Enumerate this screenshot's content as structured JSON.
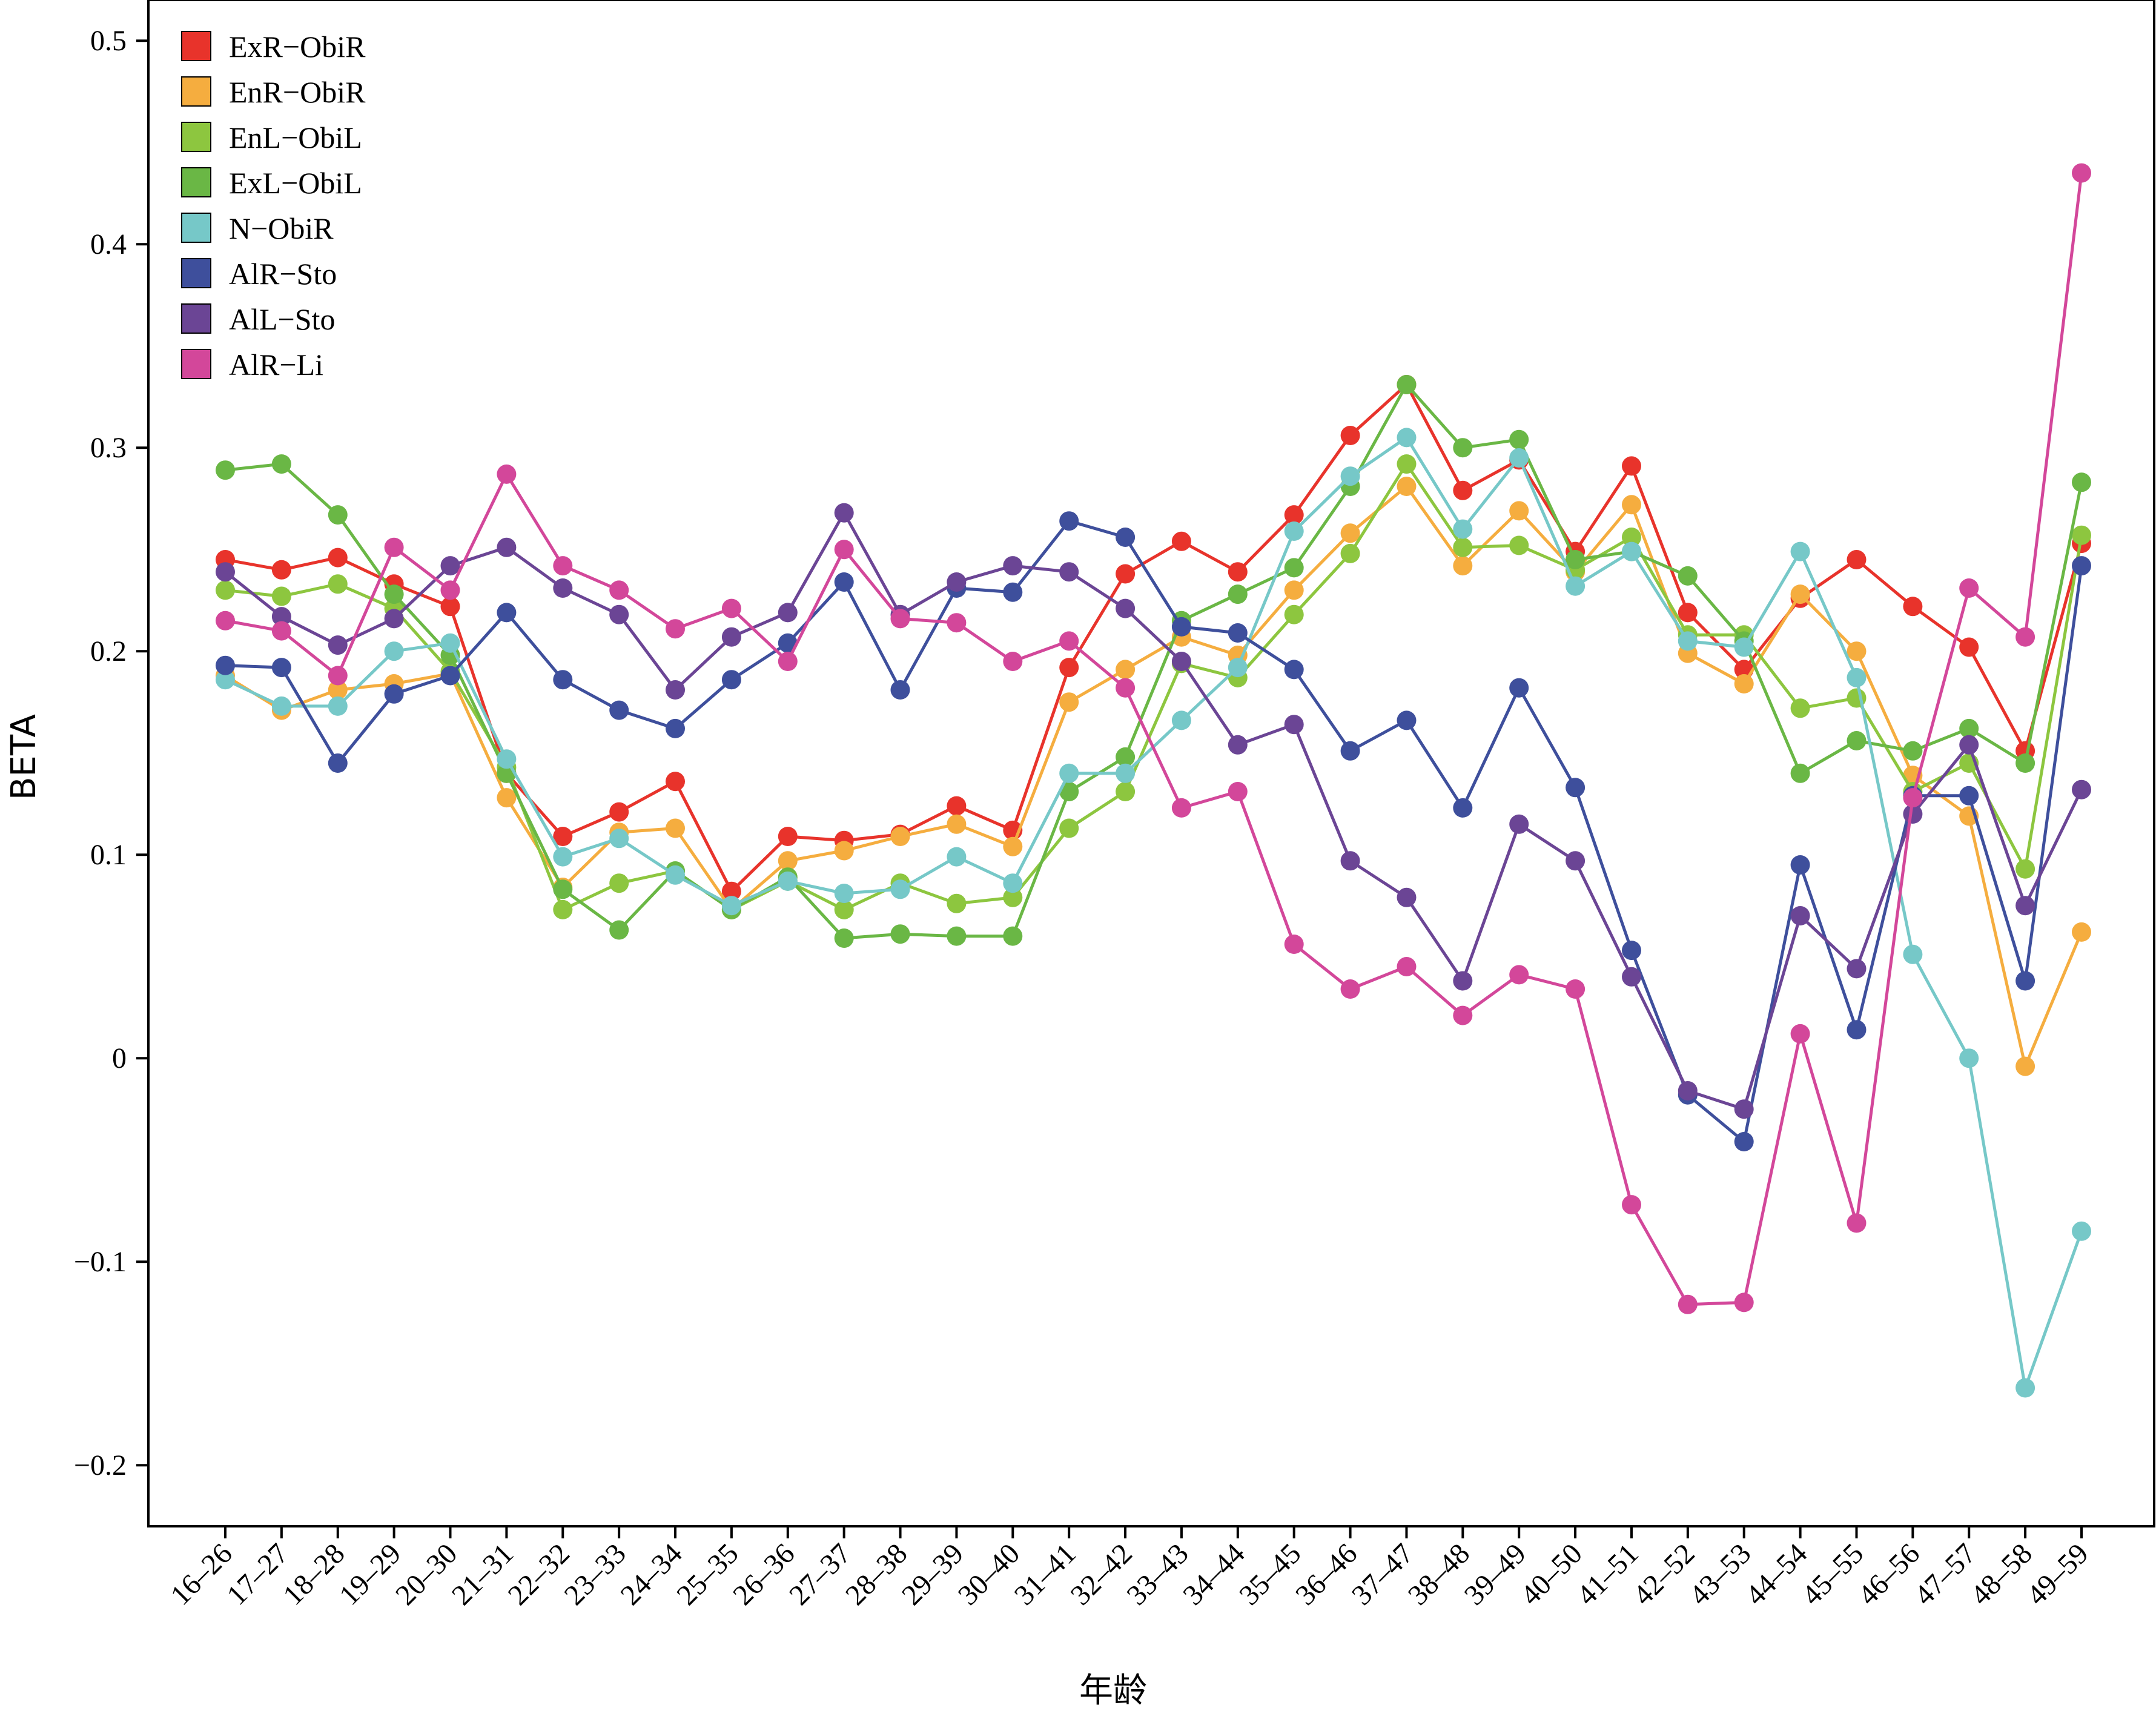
{
  "chart_data": {
    "type": "line",
    "title": "",
    "xlabel": "年龄",
    "ylabel": "BETA",
    "ylim": [
      -0.23,
      0.52
    ],
    "yticks": [
      "0.5",
      "0.4",
      "0.3",
      "0.2",
      "0.1",
      "0",
      "−0.1",
      "−0.2"
    ],
    "ytick_values": [
      0.5,
      0.4,
      0.3,
      0.2,
      0.1,
      0,
      -0.1,
      -0.2
    ],
    "grid": false,
    "legend_position": "top-left",
    "categories": [
      "16–26",
      "17–27",
      "18–28",
      "19–29",
      "20–30",
      "21–31",
      "22–32",
      "23–33",
      "24–34",
      "25–35",
      "26–36",
      "27–37",
      "28–38",
      "29–39",
      "30–40",
      "31–41",
      "32–42",
      "33–43",
      "34–44",
      "35–45",
      "36–46",
      "37–47",
      "38–48",
      "39–49",
      "40–50",
      "41–51",
      "42–52",
      "43–53",
      "44–54",
      "45–55",
      "46–56",
      "47–57",
      "48–58",
      "49–59"
    ],
    "series": [
      {
        "name": "ExR−ObiR",
        "color": "#e8332b",
        "values": [
          0.245,
          0.24,
          0.246,
          0.233,
          0.222,
          0.14,
          0.109,
          0.121,
          0.136,
          0.082,
          0.109,
          0.107,
          0.11,
          0.124,
          0.112,
          0.192,
          0.238,
          0.254,
          0.239,
          0.267,
          0.306,
          0.331,
          0.279,
          0.294,
          0.249,
          0.291,
          0.219,
          0.191,
          0.226,
          0.245,
          0.222,
          0.202,
          0.151,
          0.253
        ]
      },
      {
        "name": "EnR−ObiR",
        "color": "#f5ad3f",
        "values": [
          0.188,
          0.171,
          0.181,
          0.184,
          0.189,
          0.128,
          0.084,
          0.111,
          0.113,
          0.073,
          0.097,
          0.102,
          0.109,
          0.115,
          0.104,
          0.175,
          0.191,
          0.207,
          0.198,
          0.23,
          0.258,
          0.281,
          0.242,
          0.269,
          0.239,
          0.272,
          0.199,
          0.184,
          0.228,
          0.2,
          0.139,
          0.119,
          -0.004,
          0.062
        ]
      },
      {
        "name": "EnL−ObiL",
        "color": "#8dc63f",
        "values": [
          0.23,
          0.227,
          0.233,
          0.221,
          0.19,
          0.143,
          0.073,
          0.086,
          0.092,
          0.073,
          0.087,
          0.073,
          0.086,
          0.076,
          0.079,
          0.113,
          0.131,
          0.194,
          0.187,
          0.218,
          0.248,
          0.292,
          0.251,
          0.252,
          0.24,
          0.256,
          0.208,
          0.208,
          0.172,
          0.177,
          0.131,
          0.145,
          0.093,
          0.257
        ]
      },
      {
        "name": "ExL−ObiL",
        "color": "#6ab745",
        "values": [
          0.289,
          0.292,
          0.267,
          0.228,
          0.198,
          0.14,
          0.083,
          0.063,
          0.092,
          0.073,
          0.089,
          0.059,
          0.061,
          0.06,
          0.06,
          0.131,
          0.148,
          0.215,
          0.228,
          0.241,
          0.281,
          0.331,
          0.3,
          0.304,
          0.245,
          0.249,
          0.237,
          0.205,
          0.14,
          0.156,
          0.151,
          0.162,
          0.145,
          0.283
        ]
      },
      {
        "name": "N−ObiR",
        "color": "#76c8c8",
        "values": [
          0.186,
          0.173,
          0.173,
          0.2,
          0.204,
          0.147,
          0.099,
          0.108,
          0.09,
          0.075,
          0.087,
          0.081,
          0.083,
          0.099,
          0.086,
          0.14,
          0.14,
          0.166,
          0.192,
          0.259,
          0.286,
          0.305,
          0.26,
          0.295,
          0.232,
          0.249,
          0.205,
          0.202,
          0.249,
          0.187,
          0.051,
          0.0,
          -0.162,
          -0.085
        ]
      },
      {
        "name": "AlR−Sto",
        "color": "#3e4f9c",
        "values": [
          0.193,
          0.192,
          0.145,
          0.179,
          0.188,
          0.219,
          0.186,
          0.171,
          0.162,
          0.186,
          0.204,
          0.234,
          0.181,
          0.231,
          0.229,
          0.264,
          0.256,
          0.212,
          0.209,
          0.191,
          0.151,
          0.166,
          0.123,
          0.182,
          0.133,
          0.053,
          -0.018,
          -0.041,
          0.095,
          0.014,
          0.129,
          0.129,
          0.038,
          0.242
        ]
      },
      {
        "name": "AlL−Sto",
        "color": "#6b4595",
        "values": [
          0.239,
          0.217,
          0.203,
          0.216,
          0.242,
          0.251,
          0.231,
          0.218,
          0.181,
          0.207,
          0.219,
          0.268,
          0.218,
          0.234,
          0.242,
          0.239,
          0.221,
          0.195,
          0.154,
          0.164,
          0.097,
          0.079,
          0.038,
          0.115,
          0.097,
          0.04,
          -0.016,
          -0.025,
          0.07,
          0.044,
          0.12,
          0.154,
          0.075,
          0.132
        ]
      },
      {
        "name": "AlR−Li",
        "color": "#d3479a",
        "values": [
          0.215,
          0.21,
          0.188,
          0.251,
          0.23,
          0.287,
          0.242,
          0.23,
          0.211,
          0.221,
          0.195,
          0.25,
          0.216,
          0.214,
          0.195,
          0.205,
          0.182,
          0.123,
          0.131,
          0.056,
          0.034,
          0.045,
          0.021,
          0.041,
          0.034,
          -0.072,
          -0.121,
          -0.12,
          0.012,
          -0.081,
          0.128,
          0.231,
          0.207,
          0.435
        ]
      }
    ]
  }
}
